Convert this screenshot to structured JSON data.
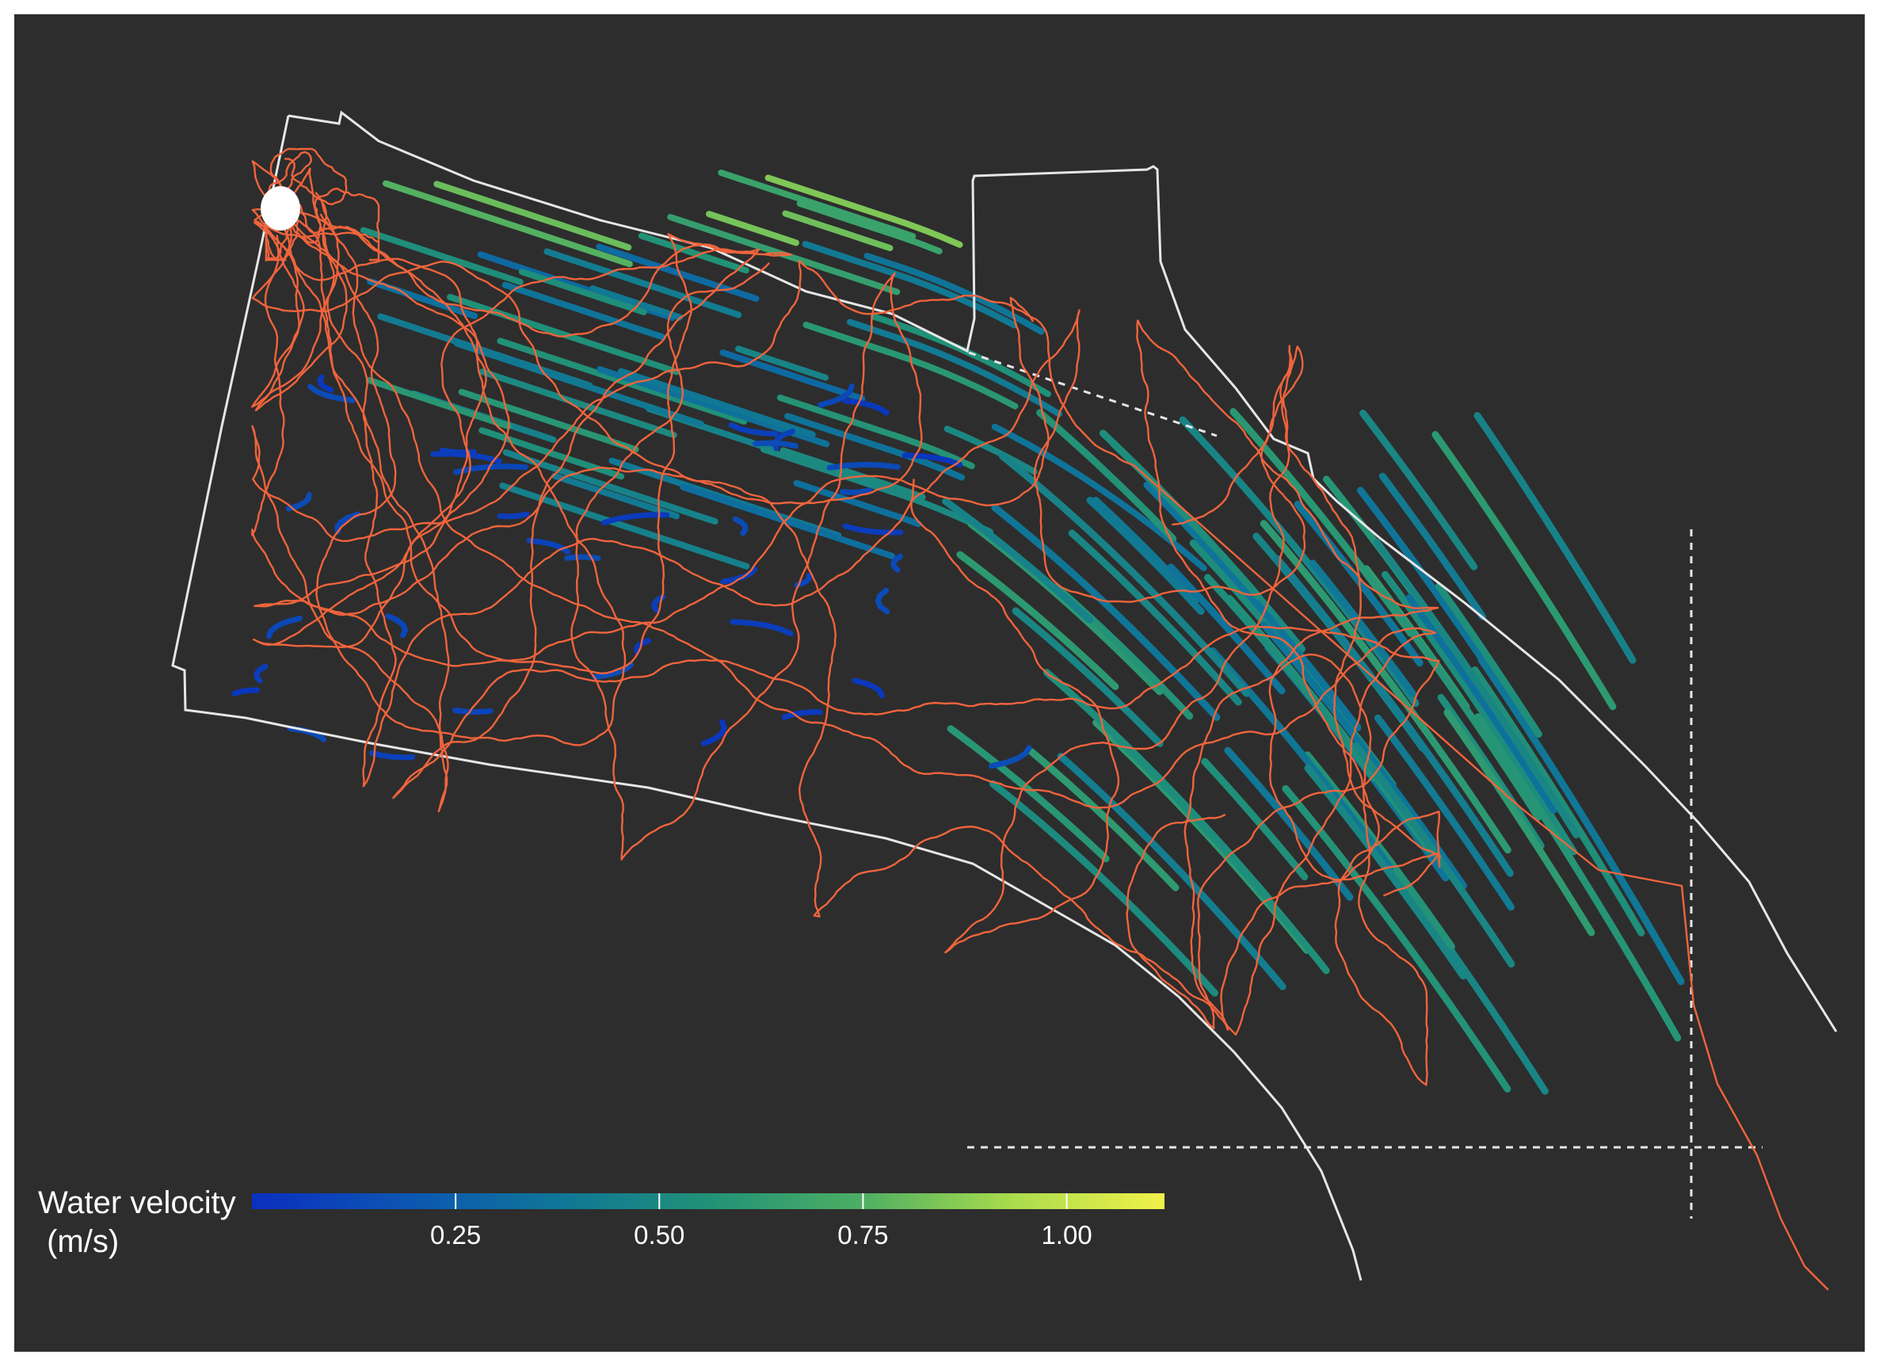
{
  "chart_data": {
    "type": "line",
    "title": "",
    "background_color": "#2d2d2d",
    "boundary_color": "#e6e6e6",
    "track_color": "#f0643c",
    "release_marker_color": "#ffffff",
    "legend": {
      "title_line1": "Water velocity",
      "title_line2": " (m/s)",
      "placement": "bottom-left",
      "scale_min": 0.0,
      "scale_max": 1.12,
      "ticks": [
        {
          "value": 0.25,
          "label": "0.25"
        },
        {
          "value": 0.5,
          "label": "0.50"
        },
        {
          "value": 0.75,
          "label": "0.75"
        },
        {
          "value": 1.0,
          "label": "1.00"
        }
      ],
      "colors": [
        "#0a2fc0",
        "#0c55b3",
        "#0f7598",
        "#219177",
        "#4cae63",
        "#a9dc4c",
        "#f2f14a"
      ]
    },
    "series": [
      {
        "values": [
          0.12,
          0.22,
          0.34,
          0.48,
          0.62,
          0.78,
          1.0
        ]
      }
    ]
  }
}
